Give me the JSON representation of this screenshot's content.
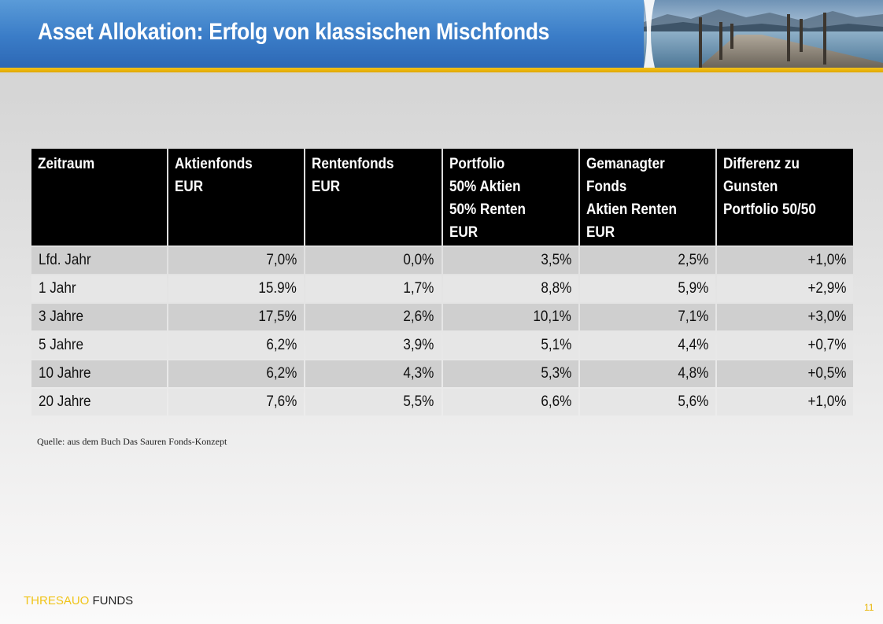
{
  "slide": {
    "title": "Asset Allokation: Erfolg von klassischen Mischfonds",
    "page_number": "11"
  },
  "table": {
    "headers": [
      [
        "Zeitraum"
      ],
      [
        "Aktienfonds",
        "EUR"
      ],
      [
        "Rentenfonds",
        "EUR"
      ],
      [
        "Portfolio",
        "50% Aktien",
        "50% Renten",
        "EUR"
      ],
      [
        "Gemanagter",
        "Fonds",
        "Aktien Renten",
        "EUR"
      ],
      [
        "Differenz zu",
        "Gunsten",
        "Portfolio 50/50"
      ]
    ],
    "rows": [
      [
        "Lfd. Jahr",
        "7,0%",
        "0,0%",
        "3,5%",
        "2,5%",
        "+1,0%"
      ],
      [
        "1 Jahr",
        "15.9%",
        "1,7%",
        "8,8%",
        "5,9%",
        "+2,9%"
      ],
      [
        "3 Jahre",
        "17,5%",
        "2,6%",
        "10,1%",
        "7,1%",
        "+3,0%"
      ],
      [
        "5 Jahre",
        "6,2%",
        "3,9%",
        "5,1%",
        "4,4%",
        "+0,7%"
      ],
      [
        "10 Jahre",
        "6,2%",
        "4,3%",
        "5,3%",
        "4,8%",
        "+0,5%"
      ],
      [
        "20 Jahre",
        "7,6%",
        "5,5%",
        "6,6%",
        "5,6%",
        "+1,0%"
      ]
    ]
  },
  "source_note": "Quelle: aus dem Buch Das Sauren Fonds-Konzept",
  "brand": {
    "part1": "THRESAUO",
    "part2": " FUNDS"
  },
  "colors": {
    "header_blue": "#3a7cc7",
    "accent_gold": "#f2c21a",
    "table_header_bg": "#000000",
    "row_dark": "#cfcfcf",
    "row_light": "#e6e6e6"
  }
}
